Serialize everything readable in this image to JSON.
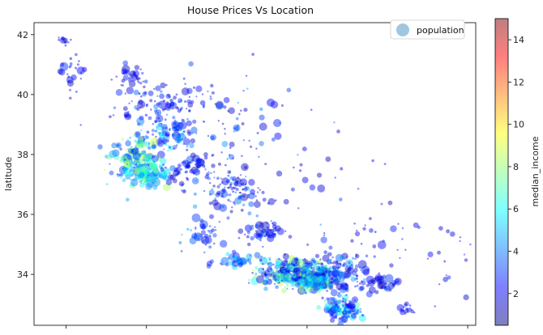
{
  "chart_data": {
    "type": "scatter",
    "title": "House Prices Vs Location",
    "xlabel": "",
    "ylabel": "latitude",
    "xlim": [
      -124.8,
      -113.8
    ],
    "ylim": [
      32.3,
      42.4
    ],
    "yticks": [
      34,
      36,
      38,
      40,
      42
    ],
    "xticks": [
      -124,
      -122,
      -120,
      -118,
      -116,
      -114
    ],
    "xticklabels_visible": false,
    "grid": false,
    "legend": {
      "position": "top-right",
      "entries": [
        "population"
      ]
    },
    "size_encodes": "population",
    "color_encodes": "median_income",
    "colormap": "jet",
    "marker_alpha": 0.45,
    "colorbar": {
      "label": "median_income",
      "range": [
        0.5,
        15
      ],
      "ticks": [
        2,
        4,
        6,
        8,
        10,
        12,
        14
      ]
    },
    "clusters": [
      {
        "lon": -124.05,
        "lat": 41.8,
        "spread_lon": 0.12,
        "spread_lat": 0.08,
        "n": 10,
        "income": [
          1.5,
          3.0
        ]
      },
      {
        "lon": -123.85,
        "lat": 40.8,
        "spread_lon": 0.15,
        "spread_lat": 0.35,
        "n": 25,
        "income": [
          1.5,
          3.5
        ]
      },
      {
        "lon": -122.4,
        "lat": 40.55,
        "spread_lon": 0.2,
        "spread_lat": 0.2,
        "n": 35,
        "income": [
          1.5,
          3.5
        ]
      },
      {
        "lon": -121.6,
        "lat": 39.6,
        "spread_lon": 0.6,
        "spread_lat": 0.4,
        "n": 110,
        "income": [
          1.5,
          4.0
        ]
      },
      {
        "lon": -121.5,
        "lat": 38.65,
        "spread_lon": 0.35,
        "spread_lat": 0.25,
        "n": 110,
        "income": [
          2.0,
          6.0
        ]
      },
      {
        "lon": -122.3,
        "lat": 37.9,
        "spread_lon": 0.3,
        "spread_lat": 0.35,
        "n": 190,
        "income": [
          3.0,
          9.0
        ]
      },
      {
        "lon": -122.0,
        "lat": 37.35,
        "spread_lon": 0.25,
        "spread_lat": 0.2,
        "n": 120,
        "income": [
          4.0,
          9.0
        ]
      },
      {
        "lon": -120.9,
        "lat": 37.55,
        "spread_lon": 0.35,
        "spread_lat": 0.25,
        "n": 70,
        "income": [
          1.5,
          4.0
        ]
      },
      {
        "lon": -119.8,
        "lat": 36.75,
        "spread_lon": 0.35,
        "spread_lat": 0.3,
        "n": 100,
        "income": [
          1.5,
          4.5
        ]
      },
      {
        "lon": -119.1,
        "lat": 35.4,
        "spread_lon": 0.25,
        "spread_lat": 0.2,
        "n": 55,
        "income": [
          1.5,
          4.0
        ]
      },
      {
        "lon": -120.5,
        "lat": 35.3,
        "spread_lon": 0.25,
        "spread_lat": 0.4,
        "n": 45,
        "income": [
          2.0,
          5.0
        ]
      },
      {
        "lon": -119.7,
        "lat": 34.45,
        "spread_lon": 0.3,
        "spread_lat": 0.1,
        "n": 45,
        "income": [
          2.5,
          6.0
        ]
      },
      {
        "lon": -118.3,
        "lat": 34.05,
        "spread_lon": 0.45,
        "spread_lat": 0.22,
        "n": 380,
        "income": [
          1.5,
          9.0
        ]
      },
      {
        "lon": -117.3,
        "lat": 34.05,
        "spread_lon": 0.4,
        "spread_lat": 0.3,
        "n": 150,
        "income": [
          1.5,
          5.0
        ]
      },
      {
        "lon": -117.85,
        "lat": 33.7,
        "spread_lon": 0.22,
        "spread_lat": 0.15,
        "n": 120,
        "income": [
          3.0,
          9.0
        ]
      },
      {
        "lon": -117.1,
        "lat": 32.85,
        "spread_lon": 0.2,
        "spread_lat": 0.18,
        "n": 150,
        "income": [
          2.0,
          7.0
        ]
      },
      {
        "lon": -116.2,
        "lat": 33.7,
        "spread_lon": 0.3,
        "spread_lat": 0.15,
        "n": 45,
        "income": [
          1.5,
          3.5
        ]
      },
      {
        "lon": -115.5,
        "lat": 32.85,
        "spread_lon": 0.1,
        "spread_lat": 0.08,
        "n": 18,
        "income": [
          1.5,
          3.0
        ]
      },
      {
        "lon": -120.0,
        "lat": 38.9,
        "spread_lon": 0.8,
        "spread_lat": 0.9,
        "n": 90,
        "income": [
          1.5,
          4.5
        ]
      },
      {
        "lon": -118.0,
        "lat": 37.0,
        "spread_lon": 1.3,
        "spread_lat": 1.2,
        "n": 40,
        "income": [
          1.5,
          4.0
        ]
      },
      {
        "lon": -114.4,
        "lat": 34.0,
        "spread_lon": 0.3,
        "spread_lat": 0.8,
        "n": 12,
        "income": [
          1.5,
          3.0
        ]
      },
      {
        "lon": -116.0,
        "lat": 35.0,
        "spread_lon": 0.8,
        "spread_lat": 0.6,
        "n": 30,
        "income": [
          1.5,
          3.5
        ]
      }
    ]
  }
}
